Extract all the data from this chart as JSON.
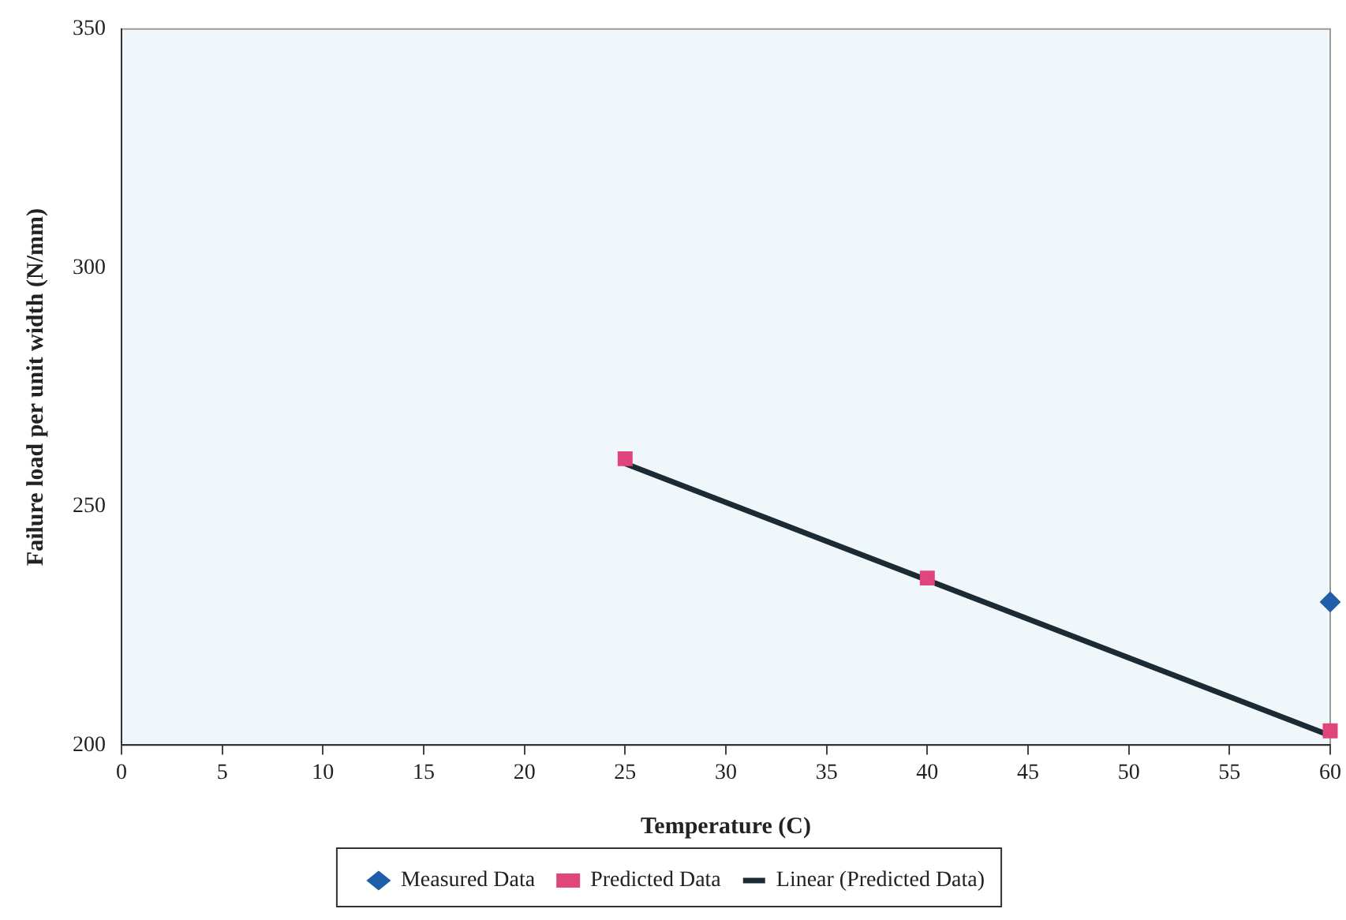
{
  "chart_data": {
    "type": "scatter",
    "xlabel": "Temperature (C)",
    "ylabel": "Failure load per unit width (N/mm)",
    "xlim": [
      0,
      60
    ],
    "xticks": [
      0,
      5,
      10,
      15,
      20,
      25,
      30,
      35,
      40,
      45,
      50,
      55,
      60
    ],
    "ylim": [
      200,
      350
    ],
    "yticks": [
      200,
      250,
      300,
      350
    ],
    "grid": false,
    "legend": "bottom",
    "series": [
      {
        "name": "Measured Data",
        "type": "scatter",
        "marker": "diamond",
        "color": "#1f5fa8",
        "x": [
          60
        ],
        "values": [
          230
        ]
      },
      {
        "name": "Predicted Data",
        "type": "scatter",
        "marker": "square",
        "color": "#e0457b",
        "x": [
          25,
          40,
          60
        ],
        "values": [
          260,
          235,
          203
        ]
      },
      {
        "name": "Linear (Predicted Data)",
        "type": "line",
        "marker": "none",
        "color": "#1c2b33",
        "x": [
          25,
          60
        ],
        "values": [
          259,
          202
        ]
      }
    ]
  }
}
